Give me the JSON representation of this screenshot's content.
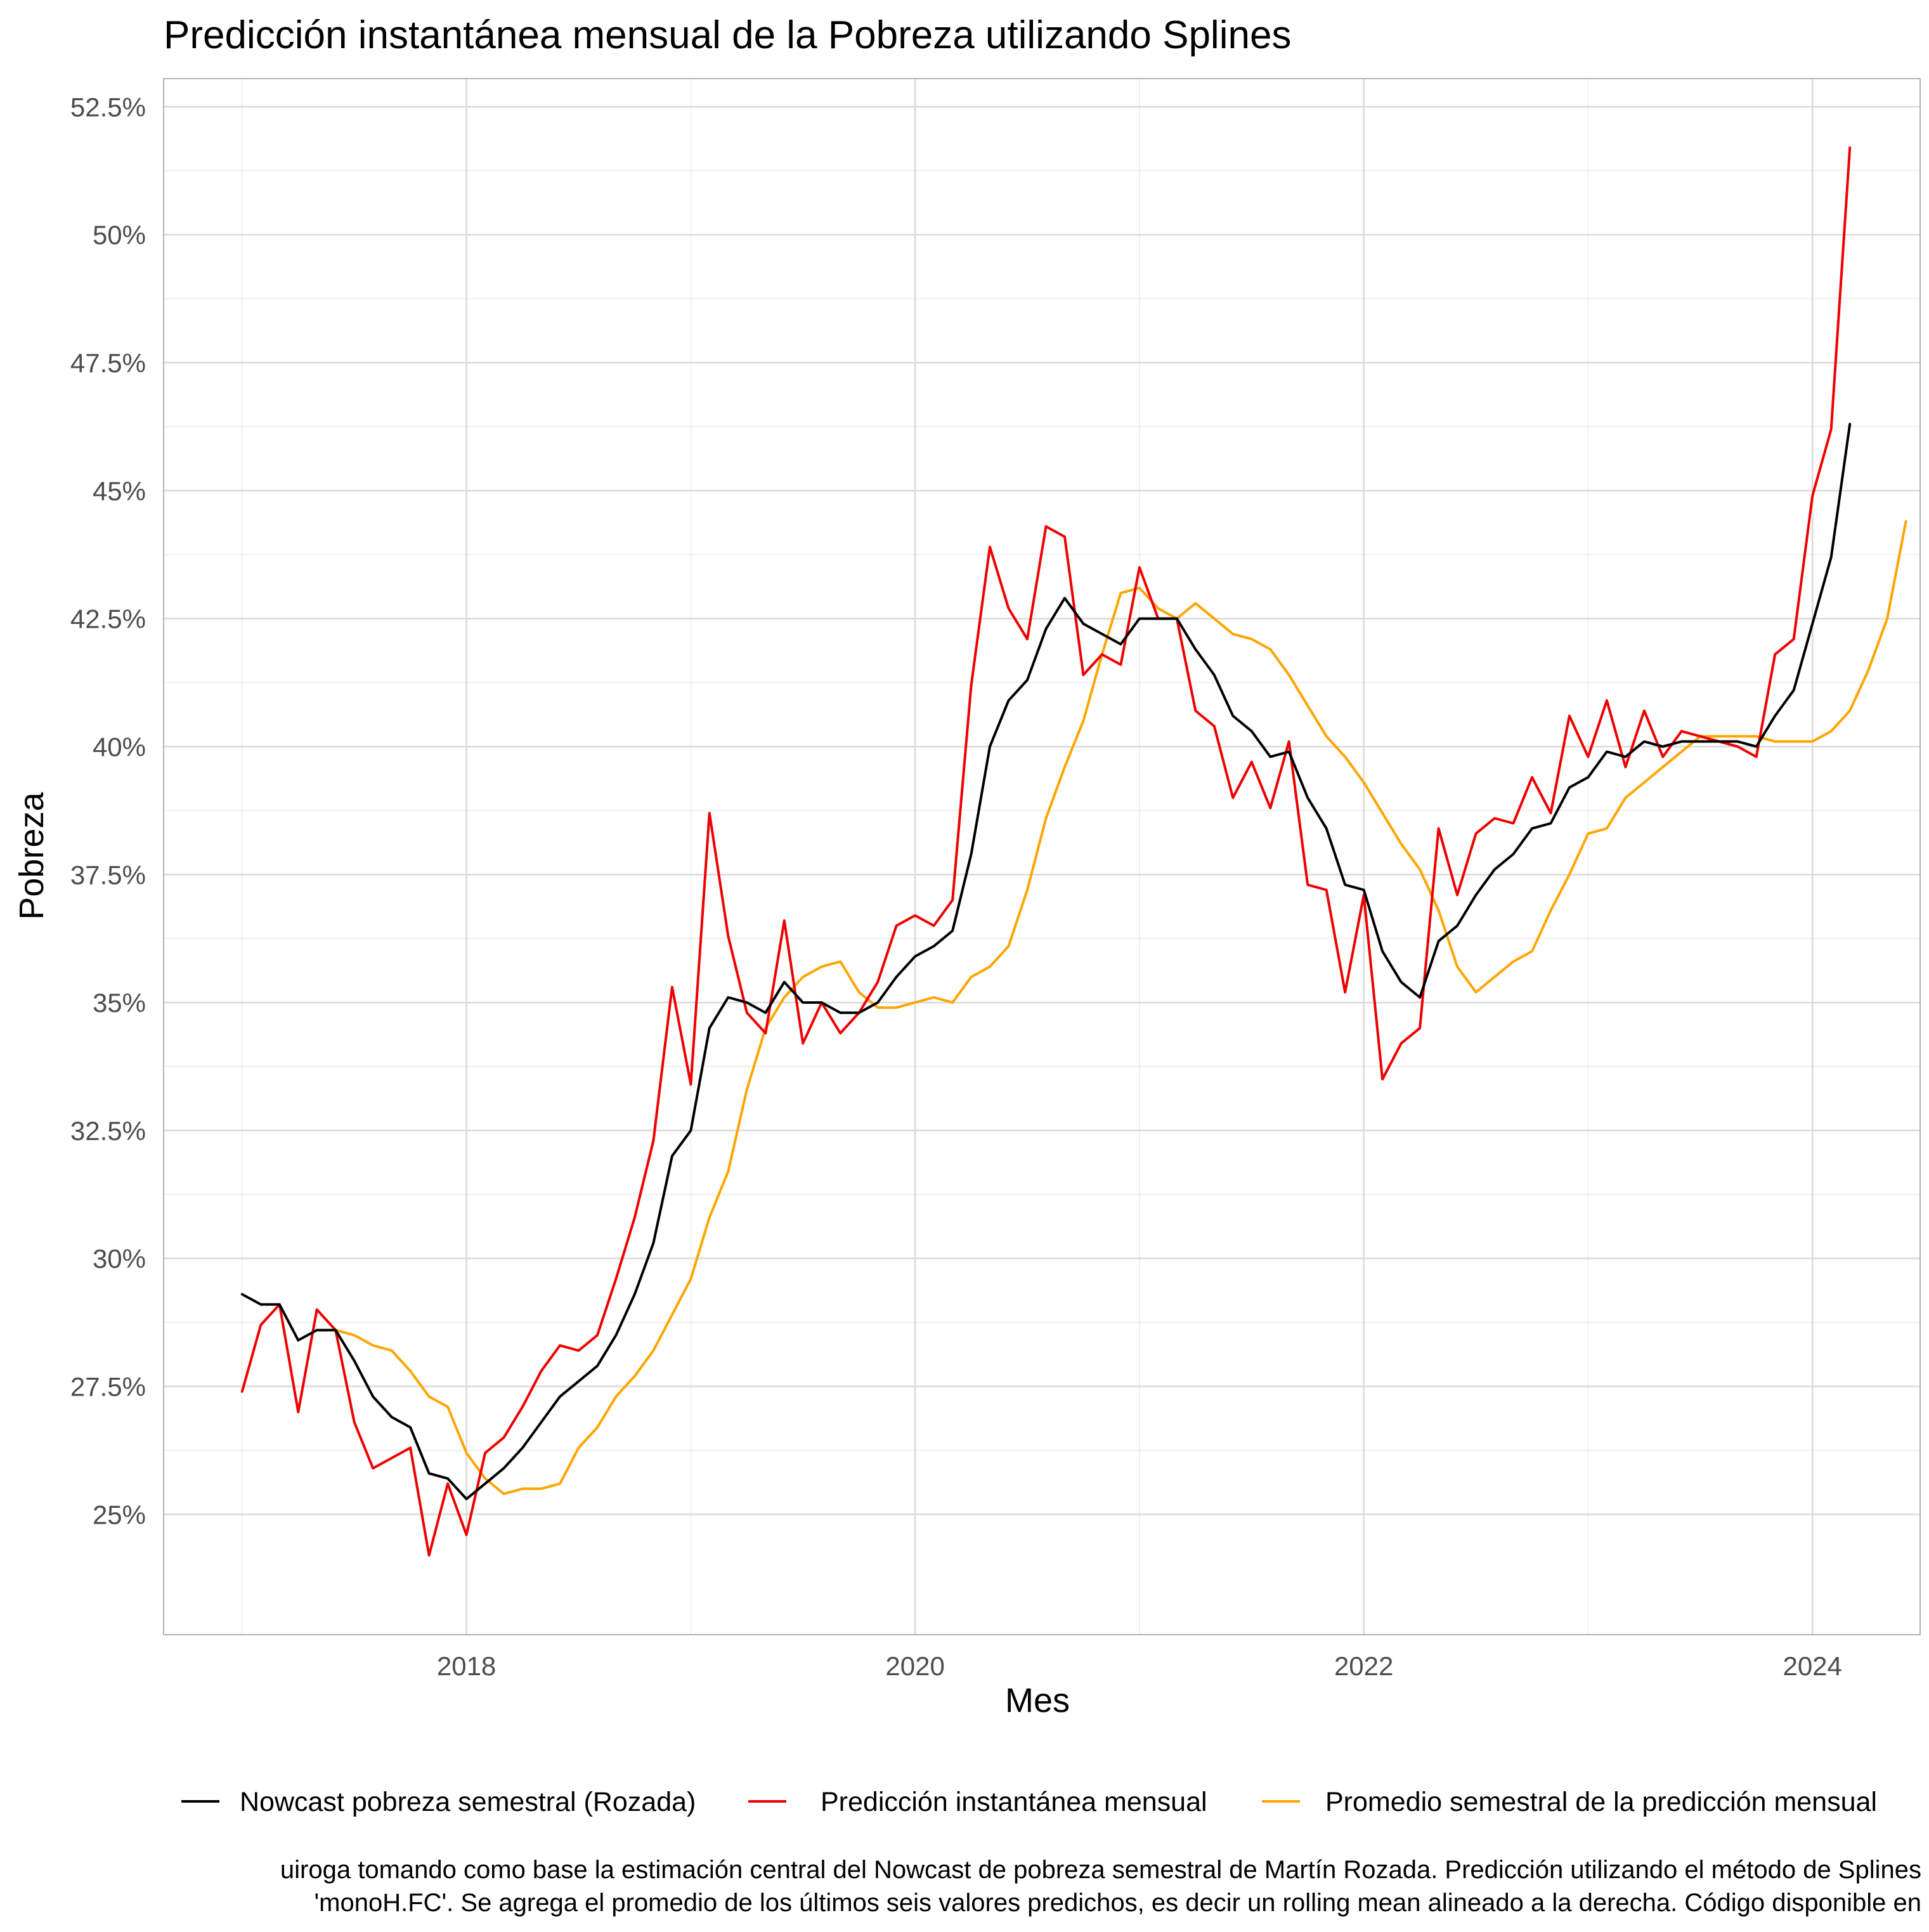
{
  "chart_data": {
    "type": "line",
    "title": "Predicción instantánea mensual de la Pobreza utilizando Splines",
    "xlabel": "Mes",
    "ylabel": "Pobreza",
    "xlim": [
      2016.65,
      2024.48
    ],
    "ylim": [
      22.65,
      53.05
    ],
    "x_ticks": [
      2018,
      2020,
      2022,
      2024
    ],
    "x_tick_labels": [
      "2018",
      "2020",
      "2022",
      "2024"
    ],
    "y_ticks": [
      25,
      27.5,
      30,
      32.5,
      35,
      37.5,
      40,
      42.5,
      45,
      47.5,
      50,
      52.5
    ],
    "y_tick_labels": [
      "25%",
      "27.5%",
      "30%",
      "32.5%",
      "35%",
      "37.5%",
      "40%",
      "42.5%",
      "45%",
      "47.5%",
      "50%",
      "52.5%"
    ],
    "grid": true,
    "legend_position": "bottom",
    "x_start": "2017-01",
    "x_frequency": "monthly",
    "series": [
      {
        "name": "Nowcast pobreza semestral (Rozada)",
        "color": "#000000",
        "start_index": 0,
        "values": [
          29.3,
          29.1,
          29.1,
          28.4,
          28.6,
          28.6,
          28.0,
          27.3,
          26.9,
          26.7,
          25.8,
          25.7,
          25.3,
          25.6,
          25.9,
          26.3,
          26.8,
          27.3,
          27.6,
          27.9,
          28.5,
          29.3,
          30.3,
          32.0,
          32.5,
          34.5,
          35.1,
          35.0,
          34.8,
          35.4,
          35.0,
          35.0,
          34.8,
          34.8,
          35.0,
          35.5,
          35.9,
          36.1,
          36.4,
          37.9,
          40.0,
          40.9,
          41.3,
          42.3,
          42.9,
          42.4,
          42.2,
          42.0,
          42.5,
          42.5,
          42.5,
          41.9,
          41.4,
          40.6,
          40.3,
          39.8,
          39.9,
          39.0,
          38.4,
          37.3,
          37.2,
          36.0,
          35.4,
          35.1,
          36.2,
          36.5,
          37.1,
          37.6,
          37.9,
          38.4,
          38.5,
          39.2,
          39.4,
          39.9,
          39.8,
          40.1,
          40.0,
          40.1,
          40.1,
          40.1,
          40.1,
          40.0,
          40.6,
          41.1,
          42.4,
          43.7,
          46.3
        ]
      },
      {
        "name": "Predicción instantánea mensual",
        "color": "#ee0000",
        "start_index": 0,
        "values": [
          27.4,
          28.7,
          29.1,
          27.0,
          29.0,
          28.6,
          26.8,
          25.9,
          26.1,
          26.3,
          24.2,
          25.6,
          24.6,
          26.2,
          26.5,
          27.1,
          27.8,
          28.3,
          28.2,
          28.5,
          29.6,
          30.8,
          32.3,
          35.3,
          33.4,
          38.7,
          36.3,
          34.8,
          34.4,
          36.6,
          34.2,
          35.0,
          34.4,
          34.8,
          35.4,
          36.5,
          36.7,
          36.5,
          37.0,
          41.2,
          43.9,
          42.7,
          42.1,
          44.3,
          44.1,
          41.4,
          41.8,
          41.6,
          43.5,
          42.5,
          42.5,
          40.7,
          40.4,
          39.0,
          39.7,
          38.8,
          40.1,
          37.3,
          37.2,
          35.2,
          37.1,
          33.5,
          34.2,
          34.5,
          38.4,
          37.1,
          38.3,
          38.6,
          38.5,
          39.4,
          38.7,
          40.6,
          39.8,
          40.9,
          39.6,
          40.7,
          39.8,
          40.3,
          40.2,
          40.1,
          40.0,
          39.8,
          41.8,
          42.1,
          44.9,
          46.2,
          51.7
        ]
      },
      {
        "name": "Promedio semestral de la predicción mensual",
        "color": "#ffa500",
        "start_index": 5,
        "values": [
          28.6,
          28.5,
          28.3,
          28.2,
          27.8,
          27.3,
          27.1,
          26.2,
          25.7,
          25.4,
          25.5,
          25.5,
          25.6,
          26.3,
          26.7,
          27.3,
          27.7,
          28.2,
          28.9,
          29.6,
          30.8,
          31.7,
          33.3,
          34.5,
          35.1,
          35.5,
          35.7,
          35.8,
          35.2,
          34.9,
          34.9,
          35.0,
          35.1,
          35.0,
          35.5,
          35.7,
          36.1,
          37.2,
          38.6,
          39.6,
          40.5,
          41.8,
          43.0,
          43.1,
          42.7,
          42.5,
          42.8,
          42.5,
          42.2,
          42.1,
          41.9,
          41.4,
          40.8,
          40.2,
          39.8,
          39.3,
          38.7,
          38.1,
          37.6,
          36.8,
          35.7,
          35.2,
          35.5,
          35.8,
          36.0,
          36.8,
          37.5,
          38.3,
          38.4,
          39.0,
          39.3,
          39.6,
          39.9,
          40.2,
          40.2,
          40.2,
          40.2,
          40.1,
          40.1,
          40.1,
          40.3,
          40.7,
          41.5,
          42.5,
          44.4
        ]
      }
    ]
  },
  "legend": {
    "items": [
      "Nowcast pobreza semestral (Rozada)",
      "Predicción instantánea mensual",
      "Promedio semestral de la predicción mensual"
    ]
  },
  "caption": {
    "line1": "uiroga tomando como base la estimación central del Nowcast de pobreza semestral de Martín Rozada. Predicción utilizando el método de Splines",
    "line2": "'monoH.FC'. Se agrega el promedio de los últimos seis valores predichos, es decir un rolling mean alineado a la derecha. Código disponible en"
  }
}
